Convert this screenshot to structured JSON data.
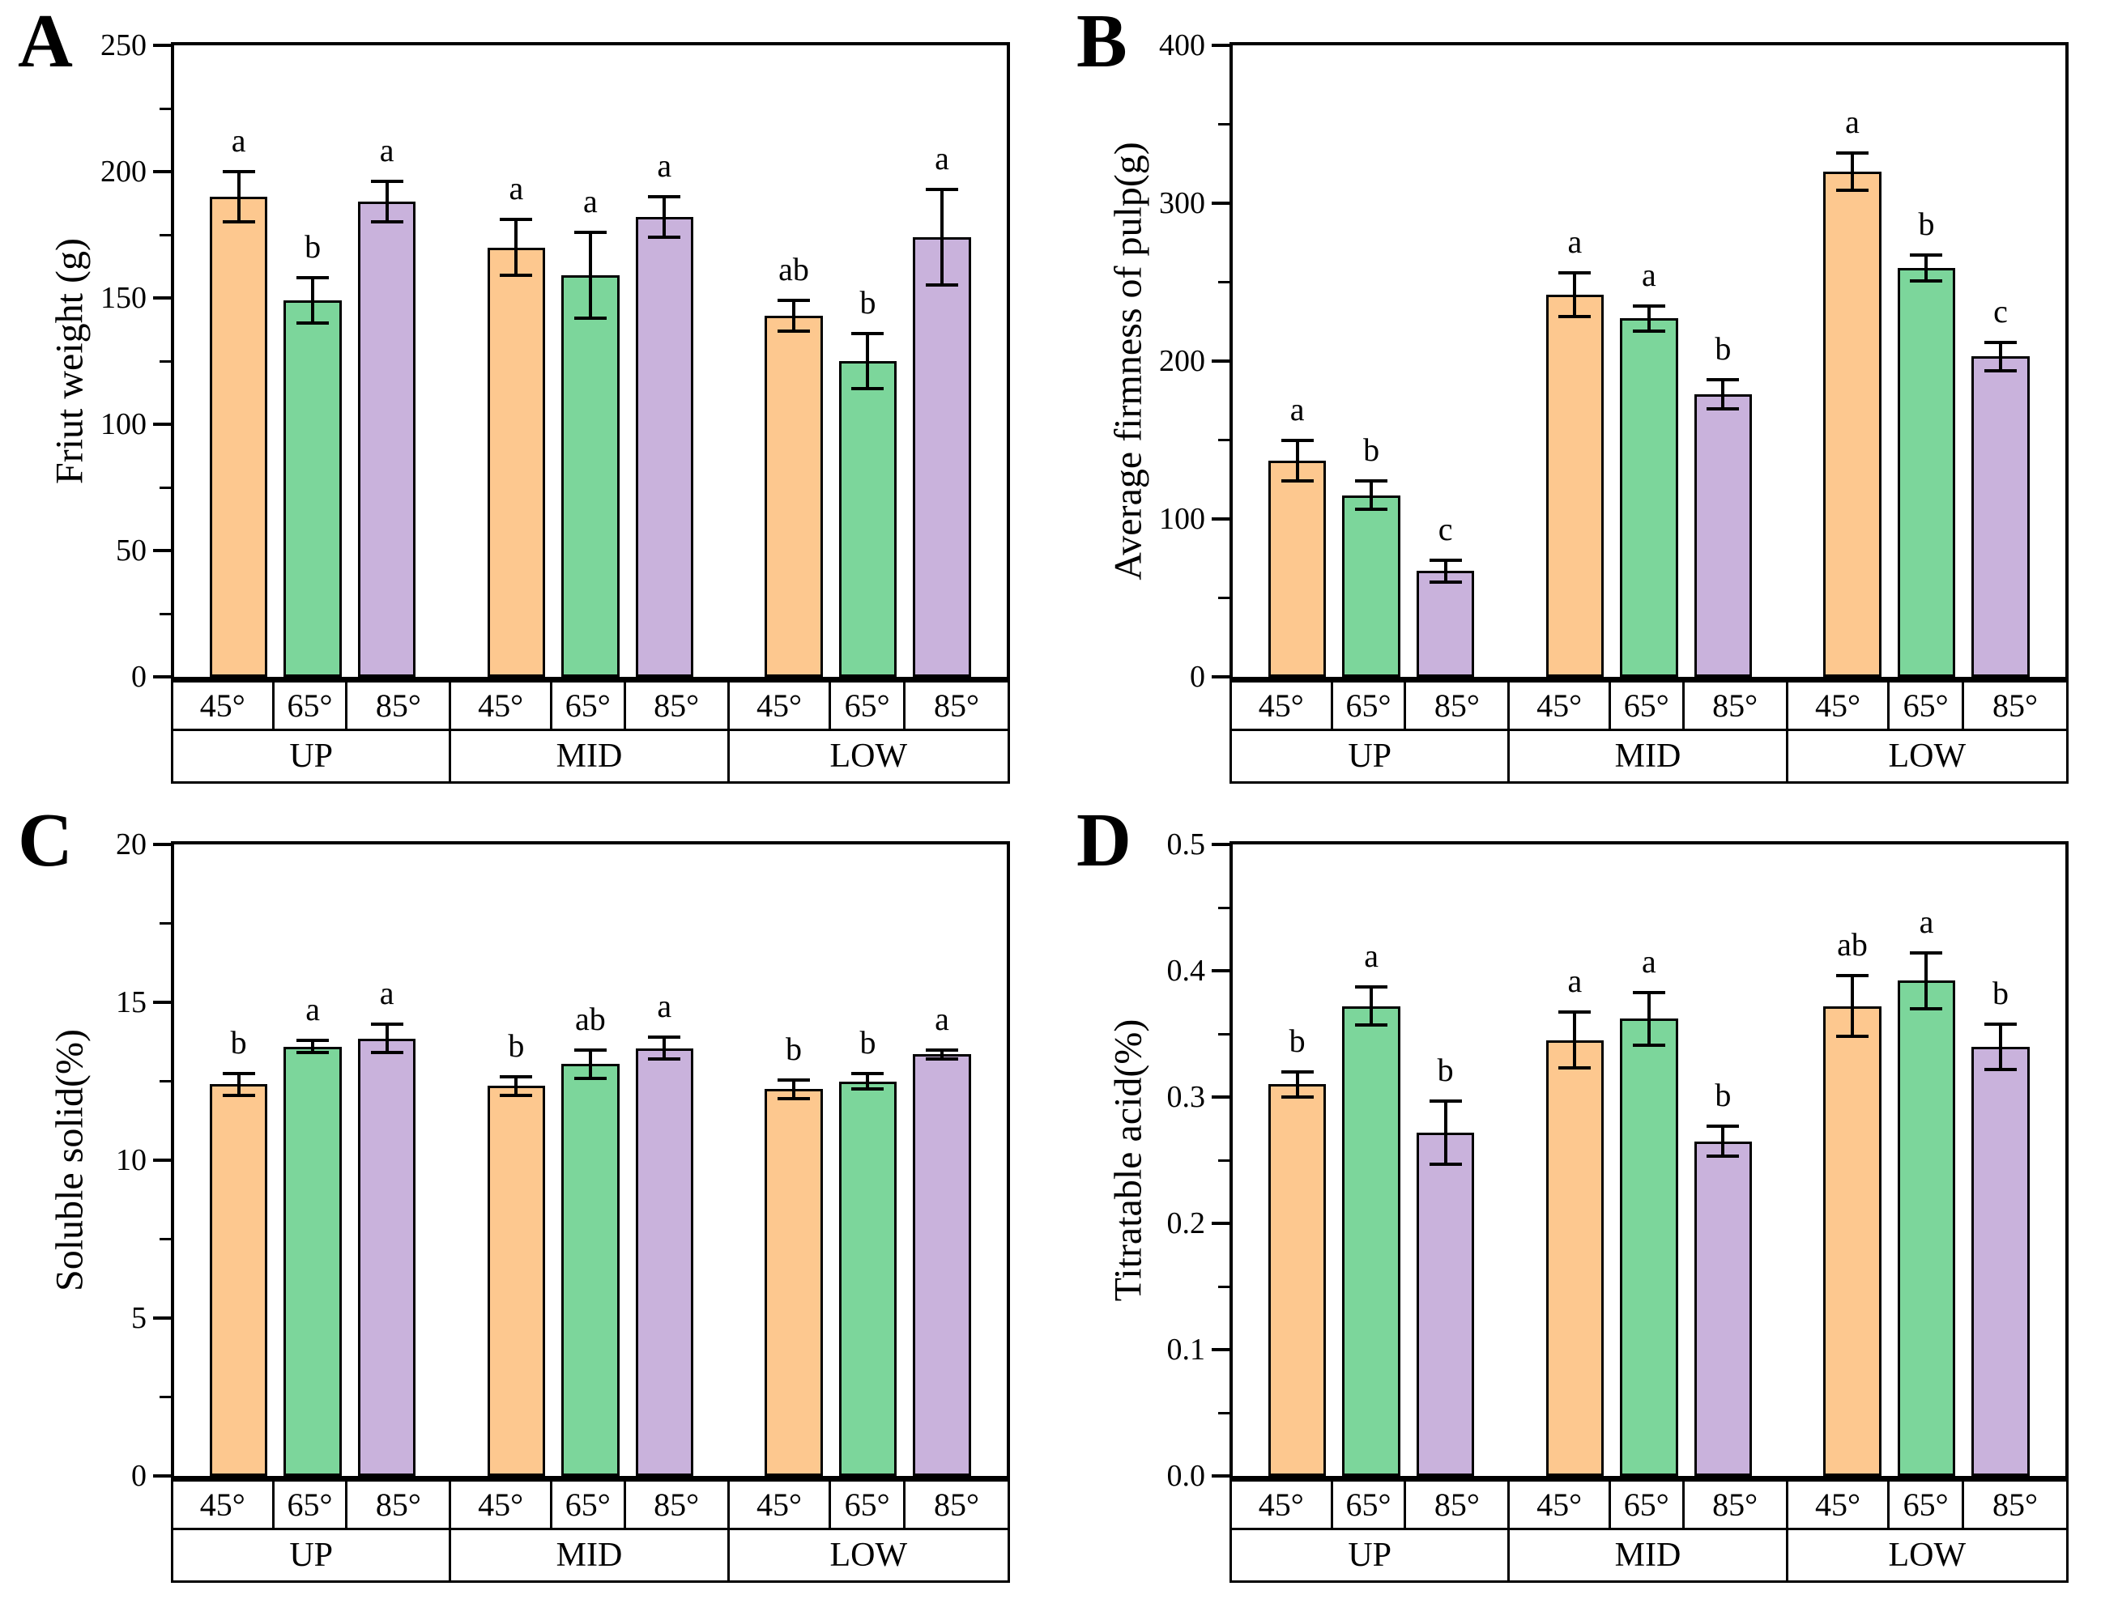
{
  "colors": {
    "orange": "#FDC88F",
    "green": "#7CD69B",
    "purple": "#C9B2DC",
    "axis": "#000000",
    "bar_border": "#000000"
  },
  "chart_data": [
    {
      "panel_letter": "A",
      "type": "bar",
      "ylabel": "Friut weight (g)",
      "xlabel": "",
      "ylim": [
        0,
        250
      ],
      "ytick_step": 50,
      "yminor_step": 25,
      "yticks": [
        "0",
        "50",
        "100",
        "150",
        "200",
        "250"
      ],
      "grid": "off",
      "legend_position": "none",
      "categories": [
        "UP",
        "MID",
        "LOW"
      ],
      "subcategories": [
        "45°",
        "65°",
        "85°"
      ],
      "series": [
        {
          "name": "45°",
          "color_key": "orange",
          "values": [
            190,
            170,
            143
          ],
          "errors": [
            10,
            11,
            6
          ],
          "letters": [
            "a",
            "a",
            "ab"
          ]
        },
        {
          "name": "65°",
          "color_key": "green",
          "values": [
            149,
            159,
            125
          ],
          "errors": [
            9,
            17,
            11
          ],
          "letters": [
            "b",
            "a",
            "b"
          ]
        },
        {
          "name": "85°",
          "color_key": "purple",
          "values": [
            188,
            182,
            174
          ],
          "errors": [
            8,
            8,
            19
          ],
          "letters": [
            "a",
            "a",
            "a"
          ]
        }
      ]
    },
    {
      "panel_letter": "B",
      "type": "bar",
      "ylabel": "Average firmness of pulp(g)",
      "xlabel": "",
      "ylim": [
        0,
        400
      ],
      "ytick_step": 100,
      "yminor_step": 50,
      "yticks": [
        "0",
        "100",
        "200",
        "300",
        "400"
      ],
      "grid": "off",
      "legend_position": "none",
      "categories": [
        "UP",
        "MID",
        "LOW"
      ],
      "subcategories": [
        "45°",
        "65°",
        "85°"
      ],
      "series": [
        {
          "name": "45°",
          "color_key": "orange",
          "values": [
            137,
            242,
            320
          ],
          "errors": [
            13,
            14,
            12
          ],
          "letters": [
            "a",
            "a",
            "a"
          ]
        },
        {
          "name": "65°",
          "color_key": "green",
          "values": [
            115,
            227,
            259
          ],
          "errors": [
            9,
            8,
            8
          ],
          "letters": [
            "b",
            "a",
            "b"
          ]
        },
        {
          "name": "85°",
          "color_key": "purple",
          "values": [
            67,
            179,
            203
          ],
          "errors": [
            7,
            9,
            9
          ],
          "letters": [
            "c",
            "b",
            "c"
          ]
        }
      ]
    },
    {
      "panel_letter": "C",
      "type": "bar",
      "ylabel": "Soluble solid(%)",
      "xlabel": "",
      "ylim": [
        0,
        20
      ],
      "ytick_step": 5,
      "yminor_step": 2.5,
      "yticks": [
        "0",
        "5",
        "10",
        "15",
        "20"
      ],
      "grid": "off",
      "legend_position": "none",
      "categories": [
        "UP",
        "MID",
        "LOW"
      ],
      "subcategories": [
        "45°",
        "65°",
        "85°"
      ],
      "series": [
        {
          "name": "45°",
          "color_key": "orange",
          "values": [
            12.4,
            12.35,
            12.25
          ],
          "errors": [
            0.35,
            0.3,
            0.3
          ],
          "letters": [
            "b",
            "b",
            "b"
          ]
        },
        {
          "name": "65°",
          "color_key": "green",
          "values": [
            13.6,
            13.05,
            12.5
          ],
          "errors": [
            0.2,
            0.45,
            0.25
          ],
          "letters": [
            "a",
            "ab",
            "b"
          ]
        },
        {
          "name": "85°",
          "color_key": "purple",
          "values": [
            13.85,
            13.55,
            13.35
          ],
          "errors": [
            0.45,
            0.35,
            0.15
          ],
          "letters": [
            "a",
            "a",
            "a"
          ]
        }
      ]
    },
    {
      "panel_letter": "D",
      "type": "bar",
      "ylabel": "Titratable acid(%)",
      "xlabel": "",
      "ylim": [
        0,
        0.5
      ],
      "ytick_step": 0.1,
      "yminor_step": 0.05,
      "yticks": [
        "0.0",
        "0.1",
        "0.2",
        "0.3",
        "0.4",
        "0.5"
      ],
      "grid": "off",
      "legend_position": "none",
      "categories": [
        "UP",
        "MID",
        "LOW"
      ],
      "subcategories": [
        "45°",
        "65°",
        "85°"
      ],
      "series": [
        {
          "name": "45°",
          "color_key": "orange",
          "values": [
            0.31,
            0.345,
            0.372
          ],
          "errors": [
            0.01,
            0.022,
            0.024
          ],
          "letters": [
            "b",
            "a",
            "ab"
          ]
        },
        {
          "name": "65°",
          "color_key": "green",
          "values": [
            0.372,
            0.362,
            0.392
          ],
          "errors": [
            0.015,
            0.021,
            0.022
          ],
          "letters": [
            "a",
            "a",
            "a"
          ]
        },
        {
          "name": "85°",
          "color_key": "purple",
          "values": [
            0.272,
            0.265,
            0.34
          ],
          "errors": [
            0.025,
            0.012,
            0.018
          ],
          "letters": [
            "b",
            "b",
            "b"
          ]
        }
      ]
    }
  ]
}
